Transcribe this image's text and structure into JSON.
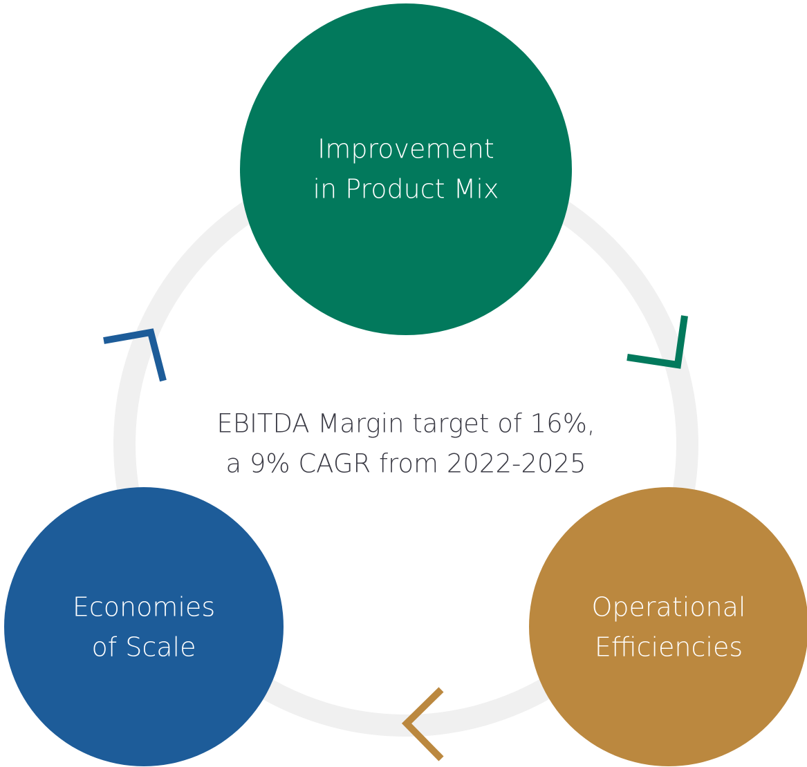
{
  "center": {
    "lines": [
      "EBITDA Margin target of 16%,",
      "a 9% CAGR from 2022-2025"
    ]
  },
  "nodes": [
    {
      "lines": [
        "Improvement",
        "in Product Mix"
      ]
    },
    {
      "lines": [
        "Operational",
        "Efficiencies"
      ]
    },
    {
      "lines": [
        "Economies",
        "of Scale"
      ]
    }
  ]
}
